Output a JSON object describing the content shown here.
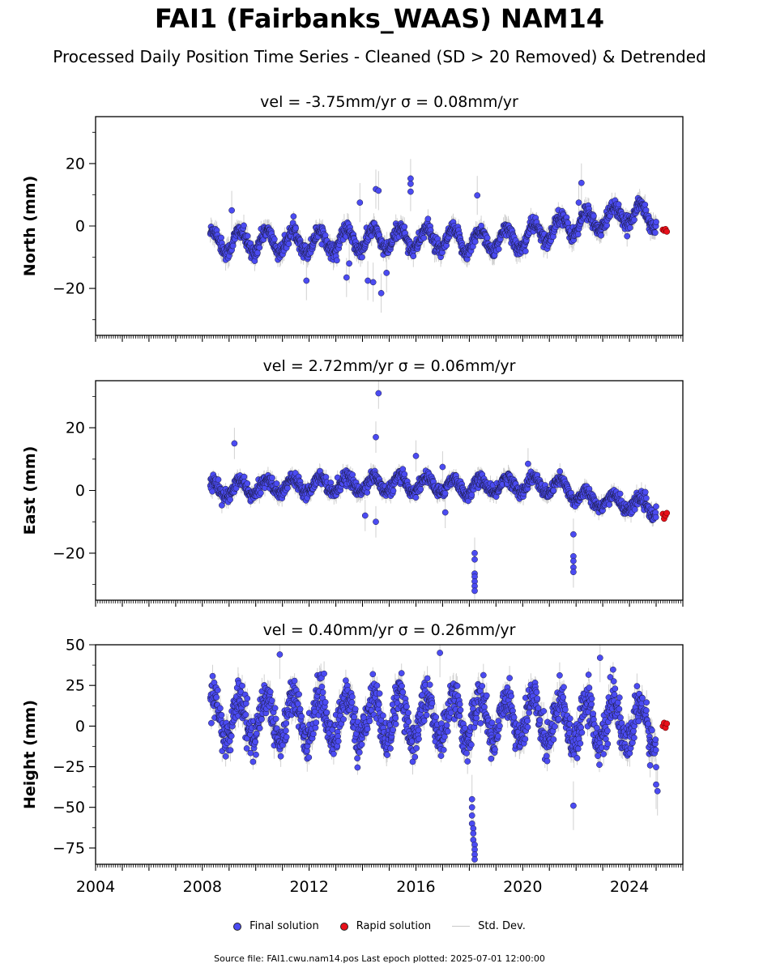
{
  "title": "FAI1 (Fairbanks_WAAS) NAM14",
  "subtitle": "Processed Daily Position Time Series - Cleaned (SD > 20 Removed) & Detrended",
  "legend": {
    "final": "Final solution",
    "rapid": "Rapid solution",
    "std": "Std. Dev."
  },
  "footer": "Source file: FAI1.cwu.nam14.pos  Last epoch plotted: 2025-07-01 12:00:00",
  "colors": {
    "final": "#4b4bf2",
    "rapid": "#e8101a",
    "std": "#bdbdbd"
  },
  "chart_data": [
    {
      "type": "scatter",
      "component": "north",
      "title": "vel = -3.75mm/yr   σ = 0.08mm/yr",
      "xlabel": "",
      "ylabel": "North (mm)",
      "xlim": [
        2004.0,
        2026.0
      ],
      "ylim": [
        -35,
        35
      ],
      "yticks": [
        -20,
        0,
        20
      ],
      "xticks": [
        2004,
        2008,
        2012,
        2016,
        2020,
        2024
      ],
      "xtick_labels_shown": false,
      "series": [
        {
          "name": "Final solution",
          "x_range": [
            2008.3,
            2025.0
          ],
          "n_points": 5900,
          "annual_amplitude": 3.5,
          "noise": 1.2,
          "sd_typical": 2.5,
          "envelope": [
            [
              2008.3,
              -5
            ],
            [
              2012.0,
              -5
            ],
            [
              2016.0,
              -4
            ],
            [
              2018.0,
              -5
            ],
            [
              2020.0,
              -4
            ],
            [
              2021.5,
              0
            ],
            [
              2023.0,
              2
            ],
            [
              2024.0,
              4
            ],
            [
              2025.0,
              3
            ]
          ],
          "outliers": [
            [
              2009.1,
              5.0
            ],
            [
              2011.9,
              -17.5
            ],
            [
              2013.9,
              7.5
            ],
            [
              2014.5,
              11.8
            ],
            [
              2014.6,
              11.3
            ],
            [
              2014.2,
              -17.5
            ],
            [
              2014.7,
              -21.5
            ],
            [
              2014.9,
              -15.0
            ],
            [
              2014.4,
              -18.0
            ],
            [
              2015.8,
              15.2
            ],
            [
              2015.8,
              13.5
            ],
            [
              2015.8,
              11.0
            ],
            [
              2018.3,
              9.8
            ],
            [
              2022.2,
              13.8
            ],
            [
              2022.1,
              7.5
            ],
            [
              2013.4,
              -16.5
            ],
            [
              2013.5,
              -12.0
            ]
          ]
        },
        {
          "name": "Rapid solution",
          "points": [
            [
              2025.25,
              -1.2
            ],
            [
              2025.3,
              -1.5
            ],
            [
              2025.35,
              -1.0
            ],
            [
              2025.4,
              -1.8
            ]
          ]
        }
      ]
    },
    {
      "type": "scatter",
      "component": "east",
      "title": "vel = 2.72mm/yr   σ = 0.06mm/yr",
      "xlabel": "",
      "ylabel": "East (mm)",
      "xlim": [
        2004.0,
        2026.0
      ],
      "ylim": [
        -35,
        35
      ],
      "yticks": [
        -20,
        0,
        20
      ],
      "xticks": [
        2004,
        2008,
        2012,
        2016,
        2020,
        2024
      ],
      "xtick_labels_shown": false,
      "series": [
        {
          "name": "Final solution",
          "x_range": [
            2008.3,
            2025.0
          ],
          "n_points": 5900,
          "annual_amplitude": 2.5,
          "noise": 1.0,
          "sd_typical": 2.0,
          "envelope": [
            [
              2008.3,
              0
            ],
            [
              2012.0,
              2
            ],
            [
              2014.0,
              2
            ],
            [
              2016.0,
              2
            ],
            [
              2018.0,
              1
            ],
            [
              2020.0,
              2
            ],
            [
              2021.5,
              1
            ],
            [
              2022.5,
              -3
            ],
            [
              2024.0,
              -4
            ],
            [
              2025.0,
              -6
            ]
          ],
          "outliers": [
            [
              2009.2,
              15.0
            ],
            [
              2014.5,
              17.0
            ],
            [
              2014.6,
              31.0
            ],
            [
              2014.5,
              -10.0
            ],
            [
              2014.1,
              -8.0
            ],
            [
              2018.2,
              -20.0
            ],
            [
              2018.2,
              -22.0
            ],
            [
              2018.2,
              -26.5
            ],
            [
              2018.2,
              -27.5
            ],
            [
              2018.2,
              -29.0
            ],
            [
              2018.2,
              -30.5
            ],
            [
              2018.2,
              -32.0
            ],
            [
              2021.9,
              -14.0
            ],
            [
              2021.9,
              -21.0
            ],
            [
              2021.9,
              -22.5
            ],
            [
              2021.9,
              -24.5
            ],
            [
              2021.9,
              -26.0
            ],
            [
              2017.1,
              -7.0
            ],
            [
              2017.0,
              7.5
            ],
            [
              2016.0,
              11.0
            ],
            [
              2020.2,
              8.5
            ]
          ]
        },
        {
          "name": "Rapid solution",
          "points": [
            [
              2025.25,
              -7.5
            ],
            [
              2025.3,
              -9.0
            ],
            [
              2025.35,
              -8.0
            ],
            [
              2025.4,
              -7.2
            ]
          ]
        }
      ]
    },
    {
      "type": "scatter",
      "component": "height",
      "title": "vel = 0.40mm/yr   σ = 0.26mm/yr",
      "xlabel": "",
      "ylabel": "Height (mm)",
      "xlim": [
        2004.0,
        2026.0
      ],
      "ylim": [
        -85,
        50
      ],
      "yticks": [
        -75,
        -50,
        -25,
        0,
        25,
        50
      ],
      "xticks": [
        2004,
        2008,
        2012,
        2016,
        2020,
        2024
      ],
      "xtick_labels": [
        "2004",
        "2008",
        "2012",
        "2016",
        "2020",
        "2024"
      ],
      "series": [
        {
          "name": "Final solution",
          "x_range": [
            2008.3,
            2025.0
          ],
          "n_points": 5900,
          "annual_amplitude": 14,
          "noise": 6.0,
          "sd_typical": 6.0,
          "envelope": [
            [
              2008.3,
              5
            ],
            [
              2012.0,
              5
            ],
            [
              2016.0,
              5
            ],
            [
              2020.0,
              5
            ],
            [
              2025.0,
              0
            ]
          ],
          "outliers": [
            [
              2010.9,
              44.0
            ],
            [
              2016.9,
              45.0
            ],
            [
              2022.9,
              42.0
            ],
            [
              2018.1,
              -45.0
            ],
            [
              2018.1,
              -50.0
            ],
            [
              2018.1,
              -55.0
            ],
            [
              2018.1,
              -60.0
            ],
            [
              2018.15,
              -63.0
            ],
            [
              2018.15,
              -66.0
            ],
            [
              2018.15,
              -70.0
            ],
            [
              2018.2,
              -73.0
            ],
            [
              2018.2,
              -76.0
            ],
            [
              2018.2,
              -79.0
            ],
            [
              2018.2,
              -82.0
            ],
            [
              2021.9,
              -49.0
            ],
            [
              2025.0,
              -36.0
            ],
            [
              2025.05,
              -40.0
            ]
          ]
        },
        {
          "name": "Rapid solution",
          "points": [
            [
              2025.25,
              0.0
            ],
            [
              2025.3,
              2.0
            ],
            [
              2025.35,
              -1.0
            ],
            [
              2025.4,
              1.5
            ]
          ]
        }
      ]
    }
  ]
}
